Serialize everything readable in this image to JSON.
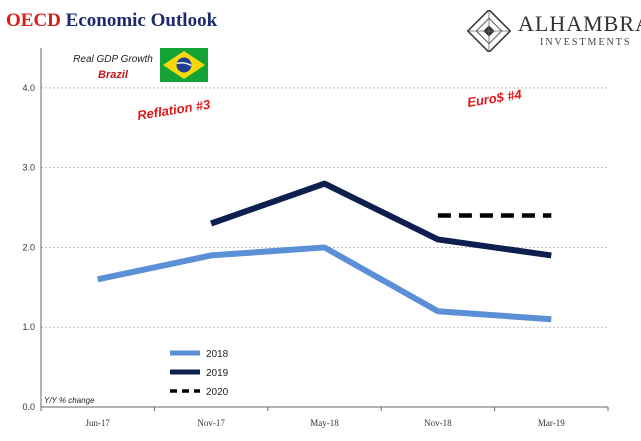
{
  "header": {
    "title_part1": "OECD",
    "title_part2": "Economic Outlook",
    "logo_name": "ALHAMBRA",
    "logo_sub": "INVESTMENTS"
  },
  "chart_data": {
    "type": "line",
    "title": "Real GDP Growth",
    "subtitle": "Brazil",
    "ylabel": "Y/Y % change",
    "ylim": [
      0,
      4.5
    ],
    "yticks": [
      "0.0",
      "1.0",
      "2.0",
      "3.0",
      "4.0"
    ],
    "categories": [
      "Jun-17",
      "Nov-17",
      "May-18",
      "Nov-18",
      "Mar-19"
    ],
    "grid": true,
    "legend_position": "bottom-left",
    "annotations": [
      "Reflation #3",
      "Euro$ #4"
    ],
    "series": [
      {
        "name": "2018",
        "color": "#5b8fd6",
        "style": "solid",
        "values": [
          1.6,
          1.9,
          2.0,
          1.2,
          1.1
        ]
      },
      {
        "name": "2019",
        "color": "#0d1f4f",
        "style": "solid",
        "values": [
          null,
          2.3,
          2.8,
          2.1,
          1.9
        ]
      },
      {
        "name": "2020",
        "color": "#000000",
        "style": "dashed",
        "values": [
          null,
          null,
          null,
          2.4,
          2.4
        ]
      }
    ]
  },
  "colors": {
    "annotation": "#e0191b",
    "flag_green": "#16a336",
    "flag_yellow": "#f5d90a",
    "flag_blue": "#1f3f94"
  }
}
